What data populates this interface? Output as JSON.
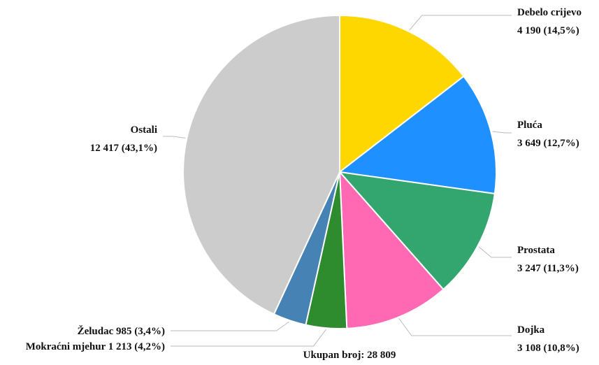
{
  "chart_data": {
    "type": "pie",
    "title": "",
    "slices": [
      {
        "name": "Debelo crijevo",
        "value": 4190,
        "label_line1": "Debelo crijevo",
        "label_line2": "4 190 (14,5%)",
        "color": "#FFD700"
      },
      {
        "name": "Pluća",
        "value": 3649,
        "label_line1": "Pluća",
        "label_line2": "3 649 (12,7%)",
        "color": "#1E90FF"
      },
      {
        "name": "Prostata",
        "value": 3247,
        "label_line1": "Prostata",
        "label_line2": "3 247 (11,3%)",
        "color": "#33A56E"
      },
      {
        "name": "Dojka",
        "value": 3108,
        "label_line1": "Dojka",
        "label_line2": "3 108 (10,8%)",
        "color": "#FF69B4"
      },
      {
        "name": "Mokraćni mjehur",
        "value": 1213,
        "label_line1": "Mokraćni mjehur 1 213 (4,2%)",
        "label_line2": "",
        "color": "#2E8B2E"
      },
      {
        "name": "Želudac",
        "value": 985,
        "label_line1": "Želudac 985 (3,4%)",
        "label_line2": "",
        "color": "#4682B4"
      },
      {
        "name": "Ostali",
        "value": 12417,
        "label_line1": "Ostali",
        "label_line2": "12 417 (43,1%)",
        "color": "#CCCCCC"
      }
    ],
    "total_label": "Ukupan broj: 28 809",
    "leader_line_color": "#BBBBBB"
  }
}
